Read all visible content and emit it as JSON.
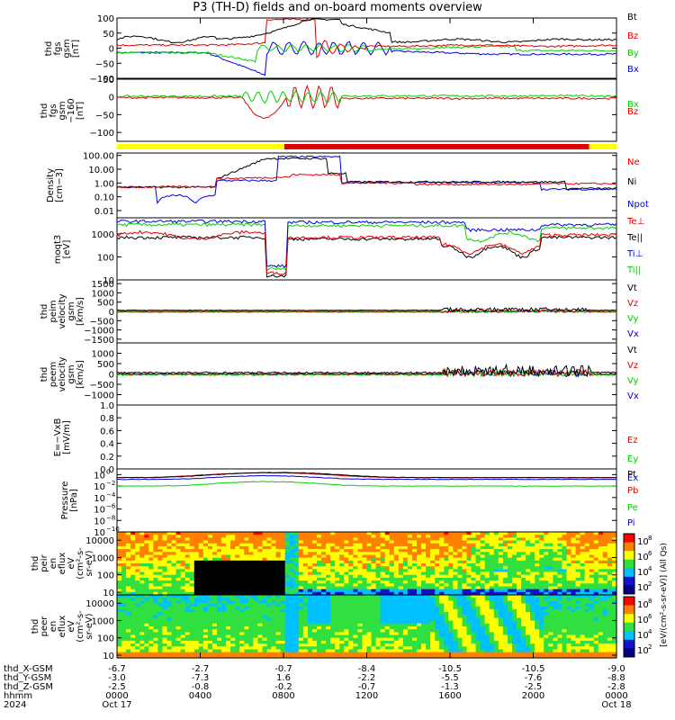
{
  "title": "P3 (TH-D) fields and on-board moments overview",
  "chart_data": [
    {
      "id": "fgs",
      "type": "line",
      "ylabel": [
        "thd",
        "fgs",
        "gsm",
        "[nT]"
      ],
      "ylim": [
        -100,
        100
      ],
      "ticks": [
        "100",
        "50",
        "0",
        "−50",
        "−100"
      ],
      "series": [
        {
          "name": "Bt",
          "color": "#000000"
        },
        {
          "name": "Bz",
          "color": "#e00000"
        },
        {
          "name": "By",
          "color": "#00d000"
        },
        {
          "name": "Bx",
          "color": "#0000e0"
        }
      ]
    },
    {
      "id": "fgs_dsl",
      "type": "line",
      "ylabel": [
        "thd",
        "fgs",
        "gsm",
        "−160",
        "[nT]"
      ],
      "ylim": [
        -125,
        50
      ],
      "ticks": [
        "50",
        "0",
        "−50",
        "−100"
      ],
      "series": [
        {
          "name": "Bx",
          "color": "#00d000"
        },
        {
          "name": "Bz",
          "color": "#e00000"
        }
      ]
    },
    {
      "id": "density",
      "type": "line",
      "ylabel": [
        "Density",
        "[cm−3]"
      ],
      "log": true,
      "ylim": [
        0.003,
        150
      ],
      "ticks": [
        "100.00",
        "10.00",
        "1.00",
        "0.10",
        "0.01"
      ],
      "series": [
        {
          "name": "Ne",
          "color": "#e00000"
        },
        {
          "name": "Ni",
          "color": "#000000"
        },
        {
          "name": "Npot",
          "color": "#0000e0"
        }
      ]
    },
    {
      "id": "temp",
      "type": "line",
      "ylabel": [
        "moqt3",
        "[eV]"
      ],
      "log": true,
      "ylim": [
        10,
        5000
      ],
      "ticks": [
        "1000",
        "100",
        "10"
      ],
      "series": [
        {
          "name": "Te⊥",
          "color": "#e00000"
        },
        {
          "name": "Te||",
          "color": "#000000"
        },
        {
          "name": "Ti⊥",
          "color": "#0000e0"
        },
        {
          "name": "Ti||",
          "color": "#00d000"
        }
      ]
    },
    {
      "id": "vi",
      "type": "line",
      "ylabel": [
        "thd",
        "peim",
        "velocity",
        "gsm",
        "[km/s]"
      ],
      "ylim": [
        -1700,
        1700
      ],
      "ticks": [
        "1500",
        "1000",
        "500",
        "0",
        "−500",
        "−1000",
        "−1500"
      ],
      "series": [
        {
          "name": "Vt",
          "color": "#000000"
        },
        {
          "name": "Vz",
          "color": "#e00000"
        },
        {
          "name": "Vy",
          "color": "#00d000"
        },
        {
          "name": "Vx",
          "color": "#0000e0"
        }
      ]
    },
    {
      "id": "ve",
      "type": "line",
      "ylabel": [
        "thd",
        "peem",
        "velocity",
        "gsm",
        "[km/s]"
      ],
      "ylim": [
        -1500,
        1500
      ],
      "ticks": [
        "1000",
        "500",
        "0",
        "−500",
        "−1000"
      ],
      "series": [
        {
          "name": "Vt",
          "color": "#000000"
        },
        {
          "name": "Vz",
          "color": "#e00000"
        },
        {
          "name": "Vy",
          "color": "#00d000"
        },
        {
          "name": "Vx",
          "color": "#0000e0"
        }
      ]
    },
    {
      "id": "efield",
      "type": "line",
      "ylabel": [
        "E=−VxB",
        "[mV/m]"
      ],
      "ylim": [
        0,
        1
      ],
      "ticks": [
        "1.0",
        "0.8",
        "0.6",
        "0.4",
        "0.2",
        "0.0"
      ],
      "series": [
        {
          "name": "Ez",
          "color": "#e00000"
        },
        {
          "name": "Ey",
          "color": "#00d000"
        },
        {
          "name": "Ex",
          "color": "#0000e0"
        }
      ]
    },
    {
      "id": "pressure",
      "type": "line",
      "ylabel": [
        "Pressure",
        "[nPa]"
      ],
      "log": true,
      "ylim": [
        1e-10,
        10
      ],
      "ticks": [
        [
          "10",
          "0"
        ],
        [
          "10",
          "−2"
        ],
        [
          "10",
          "−4"
        ],
        [
          "10",
          "−6"
        ],
        [
          "10",
          "−8"
        ],
        [
          "10",
          "−10"
        ]
      ],
      "series": [
        {
          "name": "Pt",
          "color": "#000000"
        },
        {
          "name": "Pb",
          "color": "#e00000"
        },
        {
          "name": "Pe",
          "color": "#00d000"
        },
        {
          "name": "Pi",
          "color": "#0000e0"
        }
      ]
    },
    {
      "id": "ion_spec",
      "type": "heatmap",
      "ylabel": [
        "thd",
        "peir",
        "en",
        "eflux",
        "eV",
        "(cm²-s-",
        "sr-eV)"
      ],
      "log": true,
      "ylim": [
        7,
        30000
      ],
      "ticks": [
        "10000",
        "1000",
        "100",
        "10"
      ]
    },
    {
      "id": "elec_spec",
      "type": "heatmap",
      "ylabel": [
        "thd",
        "peer",
        "en",
        "eflux",
        "eV",
        "(cm²-s-",
        "sr-eV)"
      ],
      "log": true,
      "ylim": [
        7,
        30000
      ],
      "ticks": [
        "10000",
        "1000",
        "100",
        "10"
      ]
    }
  ],
  "colorbar": {
    "label": "[eV/(cm²-s-sr-eV)] (All Qs)",
    "ion_ticks": [
      [
        "10",
        "8"
      ],
      [
        "10",
        "6"
      ],
      [
        "10",
        "4"
      ],
      [
        "10",
        "2"
      ]
    ],
    "elec_ticks": [
      [
        "10",
        "8"
      ],
      [
        "10",
        "6"
      ],
      [
        "10",
        "4"
      ],
      [
        "10",
        "2"
      ]
    ]
  },
  "footer": {
    "labels": [
      "thd_X-GSM",
      "thd_Y-GSM",
      "thd_Z-GSM",
      "hhmm",
      "2024"
    ],
    "columns": [
      [
        "-6.7",
        "-3.0",
        "-2.5",
        "0000",
        "Oct 17"
      ],
      [
        "-2.7",
        "-7.3",
        "-0.8",
        "0400",
        ""
      ],
      [
        "-0.7",
        "1.6",
        "-0.2",
        "0800",
        ""
      ],
      [
        "-8.4",
        "-2.2",
        "-0.7",
        "1200",
        ""
      ],
      [
        "-10.5",
        "-5.5",
        "-1.3",
        "1600",
        ""
      ],
      [
        "-10.5",
        "-7.6",
        "-2.5",
        "2000",
        ""
      ],
      [
        "-9.0",
        "-8.8",
        "-2.8",
        "0000",
        "Oct 18"
      ]
    ]
  },
  "mode_bar": {
    "segments": [
      {
        "from": 0,
        "to": 0.335,
        "color": "#ffff00"
      },
      {
        "from": 0.335,
        "to": 0.945,
        "color": "#e00000"
      },
      {
        "from": 0.945,
        "to": 1,
        "color": "#ffff00"
      }
    ]
  }
}
